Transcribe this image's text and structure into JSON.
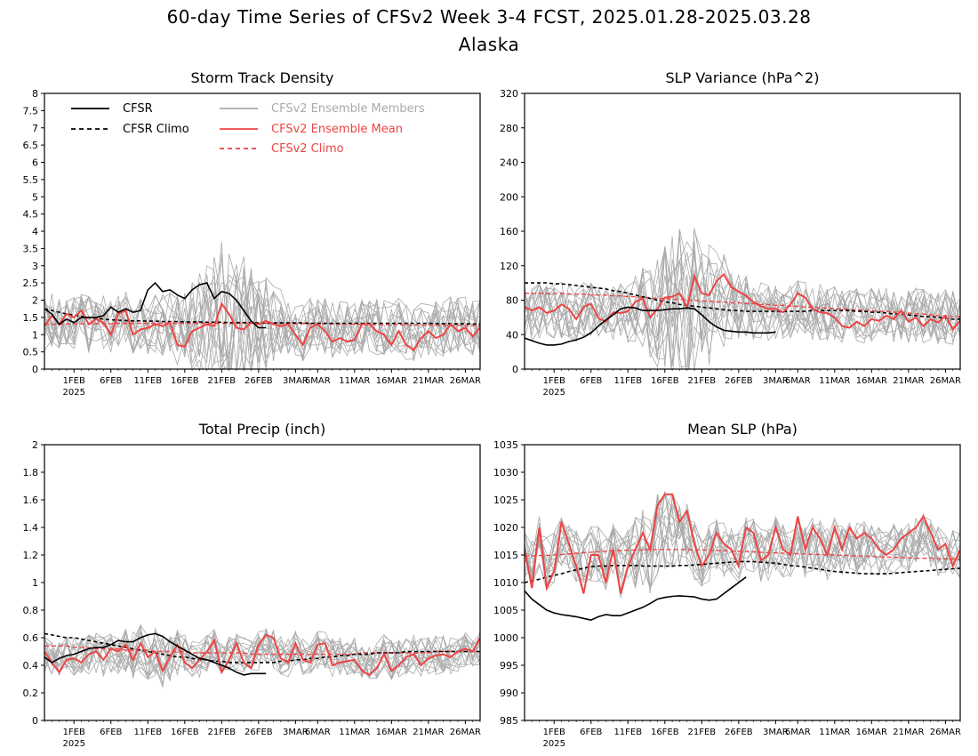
{
  "figure": {
    "title_line1": "60-day Time Series of CFSv2 Week 3-4 FCST, 2025.01.28-2025.03.28",
    "title_line2": "Alaska"
  },
  "x_axis": {
    "ticks": [
      "1FEB",
      "6FEB",
      "11FEB",
      "16FEB",
      "21FEB",
      "26FEB",
      "3MAR",
      "6MAR",
      "11MAR",
      "16MAR",
      "21MAR",
      "26MAR"
    ],
    "tick_day_index": [
      4,
      9,
      14,
      19,
      24,
      29,
      34,
      37,
      42,
      47,
      52,
      57
    ],
    "year_label": "2025",
    "n_days": 60
  },
  "legend": {
    "cfsr": "CFSR",
    "cfsr_climo": "CFSR Climo",
    "members": "CFSv2 Ensemble Members",
    "ens_mean": "CFSv2 Ensemble Mean",
    "cfsv2_climo": "CFSv2 Climo"
  },
  "colors": {
    "cfsr": "#000000",
    "members": "#aaaaaa",
    "ens_mean": "#ee4444",
    "cfsv2_climo": "#ee4444"
  },
  "chart_data": [
    {
      "type": "line",
      "title": "Storm Track Density",
      "ylim": [
        0,
        8
      ],
      "yticks": [
        "0",
        "0.5",
        "1",
        "1.5",
        "2",
        "2.5",
        "3",
        "3.5",
        "4",
        "4.5",
        "5",
        "5.5",
        "6",
        "6.5",
        "7",
        "7.5",
        "8"
      ],
      "member_center": 1.3,
      "member_spread": 0.75,
      "member_spread_peak": {
        "day": 25,
        "value": 1.3
      },
      "series": [
        {
          "name": "CFSR",
          "x_day": 0,
          "values": [
            1.75,
            1.6,
            1.3,
            1.45,
            1.35,
            1.5,
            1.5,
            1.5,
            1.55,
            1.8,
            1.65,
            1.75,
            1.65,
            1.7,
            2.3,
            2.5,
            2.25,
            2.3,
            2.15,
            2.05,
            2.3,
            2.45,
            2.5,
            2.05,
            2.25,
            2.2,
            2.0,
            1.7,
            1.4,
            1.2,
            1.2
          ]
        },
        {
          "name": "CFSR Climo",
          "x_day": 0,
          "values": [
            1.75,
            1.7,
            1.65,
            1.6,
            1.57,
            1.53,
            1.5,
            1.47,
            1.45,
            1.43,
            1.42,
            1.41,
            1.4,
            1.4,
            1.39,
            1.39,
            1.38,
            1.38,
            1.38,
            1.37,
            1.37,
            1.37,
            1.36,
            1.36,
            1.36,
            1.35,
            1.35,
            1.35,
            1.35,
            1.34,
            1.34,
            1.34,
            1.34,
            1.34,
            1.34,
            1.34,
            1.33,
            1.33,
            1.33,
            1.33,
            1.33,
            1.33,
            1.33,
            1.33,
            1.33,
            1.33,
            1.33,
            1.33,
            1.33,
            1.33,
            1.33,
            1.33,
            1.33,
            1.32,
            1.32,
            1.32,
            1.31,
            1.31,
            1.31,
            1.3
          ]
        },
        {
          "name": "CFSv2 Ensemble Mean",
          "x_day": 0,
          "values": [
            1.25,
            1.55,
            1.3,
            1.6,
            1.5,
            1.7,
            1.3,
            1.45,
            1.35,
            1.0,
            1.6,
            1.7,
            1.0,
            1.15,
            1.2,
            1.3,
            1.25,
            1.35,
            0.7,
            0.65,
            1.1,
            1.2,
            1.3,
            1.25,
            1.9,
            1.6,
            1.2,
            1.15,
            1.35,
            1.3,
            1.4,
            1.3,
            1.25,
            1.3,
            1.0,
            0.7,
            1.2,
            1.3,
            1.1,
            0.8,
            0.9,
            0.8,
            0.85,
            1.3,
            1.3,
            1.1,
            1.0,
            0.7,
            1.1,
            0.7,
            0.55,
            0.9,
            1.1,
            0.9,
            1.0,
            1.3,
            1.1,
            1.2,
            0.95,
            1.2
          ]
        },
        {
          "name": "CFSv2 Climo",
          "x_day": 0,
          "values": [
            1.3,
            1.3,
            1.3,
            1.31,
            1.31,
            1.31,
            1.32,
            1.32,
            1.32,
            1.32,
            1.33,
            1.33,
            1.33,
            1.33,
            1.33,
            1.33,
            1.33,
            1.33,
            1.33,
            1.33,
            1.33,
            1.33,
            1.33,
            1.33,
            1.33,
            1.33,
            1.33,
            1.33,
            1.33,
            1.33,
            1.33,
            1.33,
            1.33,
            1.32,
            1.32,
            1.32,
            1.32,
            1.31,
            1.31,
            1.31,
            1.3,
            1.3,
            1.3,
            1.3,
            1.3,
            1.29,
            1.29,
            1.29,
            1.29,
            1.28,
            1.28,
            1.28,
            1.28,
            1.27,
            1.27,
            1.27,
            1.27,
            1.26,
            1.26,
            1.25
          ]
        }
      ]
    },
    {
      "type": "line",
      "title": "SLP Variance (hPa^2)",
      "ylim": [
        0,
        320
      ],
      "yticks": [
        "0",
        "40",
        "80",
        "120",
        "160",
        "200",
        "240",
        "280",
        "320"
      ],
      "member_center": 65,
      "member_spread": 30,
      "member_spread_peak": {
        "day": 22,
        "value": 55
      },
      "series": [
        {
          "name": "CFSR",
          "x_day": 0,
          "values": [
            36,
            33,
            30,
            28,
            28,
            29,
            32,
            34,
            37,
            42,
            50,
            57,
            63,
            70,
            72,
            71,
            68,
            68,
            68,
            69,
            70,
            70,
            71,
            70,
            63,
            55,
            49,
            45,
            44,
            43,
            43,
            42,
            42,
            42,
            43
          ]
        },
        {
          "name": "CFSR Climo",
          "x_day": 0,
          "values": [
            100,
            100,
            100,
            100,
            99,
            99,
            98,
            97,
            96,
            95,
            94,
            93,
            91,
            90,
            88,
            86,
            84,
            82,
            80,
            78,
            77,
            75,
            74,
            73,
            72,
            71,
            70,
            69,
            68,
            68,
            67,
            67,
            67,
            67,
            67,
            67,
            67,
            67,
            67,
            68,
            68,
            68,
            68,
            68,
            68,
            67,
            67,
            66,
            66,
            65,
            64,
            64,
            63,
            62,
            61,
            61,
            60,
            59,
            58,
            58
          ]
        },
        {
          "name": "CFSv2 Ensemble Mean",
          "x_day": 0,
          "values": [
            72,
            68,
            72,
            65,
            68,
            75,
            70,
            58,
            72,
            76,
            59,
            55,
            66,
            65,
            67,
            78,
            82,
            60,
            70,
            83,
            84,
            88,
            72,
            108,
            88,
            86,
            102,
            110,
            95,
            90,
            85,
            78,
            73,
            70,
            70,
            66,
            75,
            88,
            83,
            70,
            66,
            65,
            60,
            50,
            48,
            55,
            50,
            58,
            56,
            62,
            58,
            68,
            55,
            60,
            50,
            58,
            54,
            62,
            46,
            56
          ]
        },
        {
          "name": "CFSv2 Climo",
          "x_day": 0,
          "values": [
            88,
            88,
            88,
            88,
            88,
            88,
            87,
            87,
            87,
            86,
            86,
            86,
            85,
            85,
            84,
            84,
            83,
            83,
            82,
            82,
            81,
            81,
            80,
            80,
            79,
            79,
            78,
            78,
            77,
            77,
            76,
            76,
            75,
            75,
            74,
            74,
            73,
            73,
            72,
            72,
            71,
            71,
            70,
            70,
            69,
            69,
            68,
            68,
            67,
            67,
            66,
            66,
            65,
            64,
            64,
            63,
            62,
            62,
            61,
            61
          ]
        }
      ]
    },
    {
      "type": "line",
      "title": "Total Precip (inch)",
      "ylim": [
        0,
        2
      ],
      "yticks": [
        "0",
        "0.2",
        "0.4",
        "0.6",
        "0.8",
        "1",
        "1.2",
        "1.4",
        "1.6",
        "1.8",
        "2"
      ],
      "member_center": 0.48,
      "member_spread": 0.13,
      "member_spread_peak": {
        "day": 15,
        "value": 0.05
      },
      "series": [
        {
          "name": "CFSR",
          "x_day": 0,
          "values": [
            0.46,
            0.42,
            0.45,
            0.47,
            0.48,
            0.5,
            0.52,
            0.53,
            0.53,
            0.55,
            0.58,
            0.57,
            0.57,
            0.6,
            0.62,
            0.63,
            0.61,
            0.57,
            0.54,
            0.51,
            0.48,
            0.45,
            0.44,
            0.42,
            0.4,
            0.38,
            0.35,
            0.33,
            0.34,
            0.34,
            0.34
          ]
        },
        {
          "name": "CFSR Climo",
          "x_day": 0,
          "values": [
            0.63,
            0.62,
            0.61,
            0.6,
            0.6,
            0.59,
            0.58,
            0.57,
            0.56,
            0.55,
            0.54,
            0.53,
            0.52,
            0.51,
            0.5,
            0.49,
            0.48,
            0.47,
            0.46,
            0.46,
            0.45,
            0.44,
            0.44,
            0.43,
            0.43,
            0.42,
            0.42,
            0.42,
            0.42,
            0.42,
            0.42,
            0.42,
            0.43,
            0.43,
            0.44,
            0.44,
            0.45,
            0.45,
            0.46,
            0.46,
            0.47,
            0.47,
            0.48,
            0.48,
            0.48,
            0.49,
            0.49,
            0.49,
            0.49,
            0.5,
            0.5,
            0.5,
            0.5,
            0.5,
            0.5,
            0.5,
            0.5,
            0.5,
            0.5,
            0.5
          ]
        },
        {
          "name": "CFSv2 Ensemble Mean",
          "x_day": 0,
          "values": [
            0.5,
            0.42,
            0.35,
            0.44,
            0.45,
            0.42,
            0.48,
            0.5,
            0.44,
            0.52,
            0.5,
            0.55,
            0.44,
            0.56,
            0.46,
            0.5,
            0.36,
            0.46,
            0.55,
            0.42,
            0.38,
            0.44,
            0.5,
            0.58,
            0.35,
            0.44,
            0.56,
            0.42,
            0.38,
            0.55,
            0.62,
            0.6,
            0.45,
            0.42,
            0.56,
            0.44,
            0.42,
            0.55,
            0.56,
            0.4,
            0.42,
            0.43,
            0.44,
            0.36,
            0.33,
            0.38,
            0.48,
            0.36,
            0.4,
            0.46,
            0.48,
            0.4,
            0.45,
            0.47,
            0.48,
            0.46,
            0.5,
            0.52,
            0.5,
            0.6
          ]
        },
        {
          "name": "CFSv2 Climo",
          "x_day": 0,
          "values": [
            0.54,
            0.54,
            0.54,
            0.54,
            0.53,
            0.53,
            0.53,
            0.52,
            0.52,
            0.52,
            0.52,
            0.51,
            0.51,
            0.51,
            0.51,
            0.5,
            0.5,
            0.5,
            0.5,
            0.5,
            0.49,
            0.49,
            0.49,
            0.49,
            0.49,
            0.49,
            0.49,
            0.49,
            0.48,
            0.48,
            0.48,
            0.48,
            0.48,
            0.48,
            0.48,
            0.48,
            0.48,
            0.48,
            0.48,
            0.48,
            0.48,
            0.48,
            0.48,
            0.49,
            0.49,
            0.49,
            0.49,
            0.49,
            0.49,
            0.49,
            0.49,
            0.49,
            0.49,
            0.5,
            0.5,
            0.5,
            0.5,
            0.5,
            0.5,
            0.5
          ]
        }
      ]
    },
    {
      "type": "line",
      "title": "Mean SLP (hPa)",
      "ylim": [
        985,
        1035
      ],
      "yticks": [
        "985",
        "990",
        "995",
        "1000",
        "1005",
        "1010",
        "1015",
        "1020",
        "1025",
        "1030",
        "1035"
      ],
      "member_center": 1015.5,
      "member_spread": 4.5,
      "member_spread_peak": {
        "day": 18,
        "value": 2.5
      },
      "series": [
        {
          "name": "CFSR",
          "x_day": 0,
          "values": [
            1008.5,
            1007,
            1006,
            1005,
            1004.5,
            1004.2,
            1004,
            1003.8,
            1003.5,
            1003.2,
            1003.8,
            1004.2,
            1004,
            1004,
            1004.5,
            1005,
            1005.5,
            1006.2,
            1007,
            1007.3,
            1007.5,
            1007.6,
            1007.5,
            1007.4,
            1007,
            1006.8,
            1007,
            1008,
            1009,
            1010,
            1011
          ]
        },
        {
          "name": "CFSR Climo",
          "x_day": 0,
          "values": [
            1010,
            1010.3,
            1010.6,
            1011,
            1011.3,
            1011.6,
            1012,
            1012.3,
            1012.6,
            1012.9,
            1013,
            1013,
            1013.1,
            1013.1,
            1013.1,
            1013.1,
            1013,
            1013,
            1013,
            1013,
            1013,
            1013.1,
            1013.1,
            1013.2,
            1013.3,
            1013.4,
            1013.5,
            1013.6,
            1013.7,
            1013.8,
            1013.8,
            1013.8,
            1013.7,
            1013.6,
            1013.5,
            1013.3,
            1013.1,
            1013,
            1012.8,
            1012.6,
            1012.4,
            1012.2,
            1012,
            1011.9,
            1011.8,
            1011.7,
            1011.6,
            1011.6,
            1011.6,
            1011.6,
            1011.7,
            1011.8,
            1011.9,
            1012,
            1012.1,
            1012.2,
            1012.3,
            1012.4,
            1012.5,
            1012.6
          ]
        },
        {
          "name": "CFSv2 Ensemble Mean",
          "x_day": 0,
          "values": [
            1016,
            1009,
            1020,
            1009,
            1012,
            1021,
            1017,
            1013,
            1008,
            1015,
            1015,
            1010,
            1016,
            1008,
            1013,
            1016,
            1019,
            1016,
            1024,
            1026,
            1026,
            1021,
            1023,
            1017,
            1013,
            1015,
            1019,
            1017,
            1016,
            1013,
            1020,
            1019,
            1014,
            1015,
            1020,
            1016,
            1015,
            1022,
            1016,
            1020,
            1018,
            1015,
            1020,
            1016,
            1020,
            1018,
            1019,
            1018,
            1016,
            1015,
            1016,
            1018,
            1019,
            1020,
            1022,
            1019,
            1016,
            1017,
            1013,
            1016
          ]
        },
        {
          "name": "CFSv2 Climo",
          "x_day": 0,
          "values": [
            1014.8,
            1014.8,
            1014.9,
            1014.9,
            1015,
            1015.1,
            1015.2,
            1015.3,
            1015.4,
            1015.5,
            1015.6,
            1015.7,
            1015.8,
            1015.8,
            1015.9,
            1015.9,
            1015.9,
            1016,
            1016,
            1016,
            1016,
            1016,
            1016,
            1015.9,
            1015.9,
            1015.9,
            1015.8,
            1015.8,
            1015.7,
            1015.7,
            1015.6,
            1015.6,
            1015.5,
            1015.4,
            1015.4,
            1015.3,
            1015.3,
            1015.2,
            1015.2,
            1015.1,
            1015.1,
            1015,
            1015,
            1014.9,
            1014.9,
            1014.8,
            1014.8,
            1014.7,
            1014.7,
            1014.6,
            1014.6,
            1014.5,
            1014.5,
            1014.4,
            1014.4,
            1014.4,
            1014.3,
            1014.3,
            1014.3,
            1014.2
          ]
        }
      ]
    }
  ]
}
